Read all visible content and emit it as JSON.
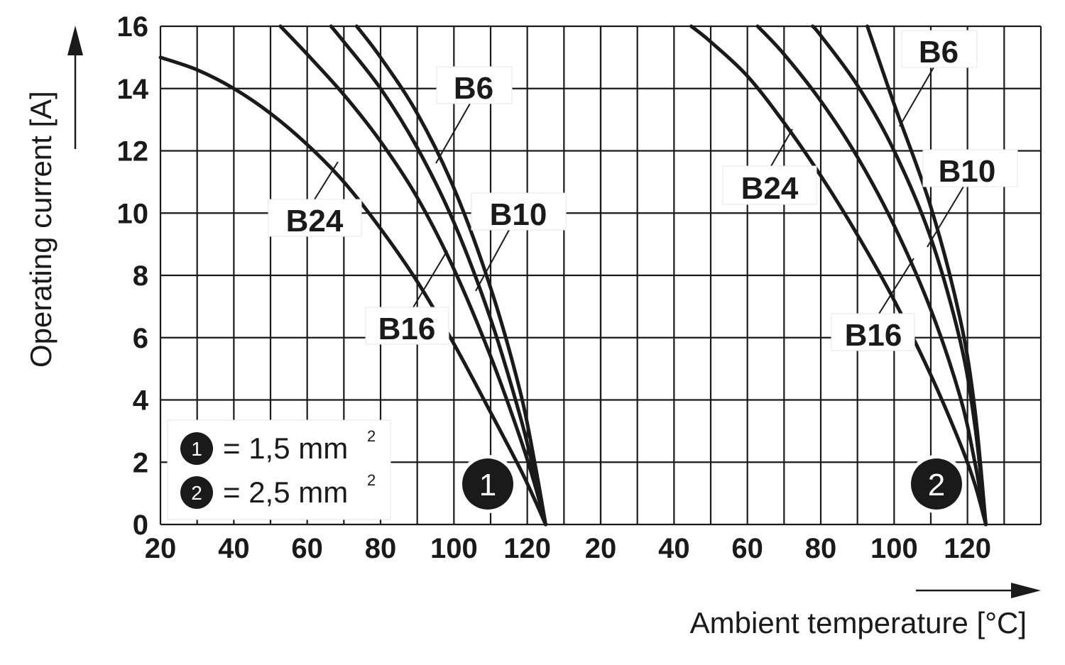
{
  "chart_data": {
    "type": "line",
    "xlabel": "Ambient temperature [°C]",
    "ylabel": "Operating current [A]",
    "ylim": [
      0,
      16
    ],
    "yticks": [
      "0",
      "2",
      "4",
      "6",
      "8",
      "10",
      "12",
      "14",
      "16"
    ],
    "grid": true,
    "legend": {
      "placement": "bottom-left",
      "items": [
        {
          "marker": "1",
          "text": "= 1,5 mm",
          "sup": "2"
        },
        {
          "marker": "2",
          "text": "= 2,5 mm",
          "sup": "2"
        }
      ]
    },
    "panels": [
      {
        "marker": "1",
        "xlim": [
          20,
          140
        ],
        "xticks": [
          "20",
          "40",
          "60",
          "80",
          "100",
          "120"
        ],
        "series": [
          {
            "name": "B24",
            "x": [
              20,
              30,
              40,
              50,
              60,
              70,
              80,
              90,
              100,
              110,
              118,
              122,
              125
            ],
            "y": [
              15,
              14.6,
              14,
              13.2,
              12.2,
              11,
              9.5,
              7.8,
              5.8,
              3.6,
              1.8,
              0.8,
              0
            ]
          },
          {
            "name": "B16",
            "x": [
              52.7,
              60,
              70,
              80,
              90,
              100,
              110,
              118,
              122,
              125
            ],
            "y": [
              16,
              15.1,
              13.8,
              12.3,
              10.5,
              8.2,
              5.4,
              2.8,
              1.3,
              0
            ]
          },
          {
            "name": "B10",
            "x": [
              66.5,
              70,
              80,
              90,
              100,
              110,
              118,
              122,
              125
            ],
            "y": [
              16,
              15.5,
              14,
              12.1,
              9.7,
              6.6,
              3.5,
              1.6,
              0
            ]
          },
          {
            "name": "B6",
            "x": [
              73.5,
              80,
              90,
              100,
              110,
              118,
              122,
              125
            ],
            "y": [
              16,
              15,
              13.2,
              10.8,
              7.6,
              4.3,
              2,
              0
            ]
          }
        ],
        "labels": [
          {
            "series": "B24",
            "text": "B24"
          },
          {
            "series": "B16",
            "text": "B16"
          },
          {
            "series": "B10",
            "text": "B10"
          },
          {
            "series": "B6",
            "text": "B6"
          }
        ]
      },
      {
        "marker": "2",
        "xlim": [
          20,
          140
        ],
        "xticks": [
          "20",
          "40",
          "60",
          "80",
          "100",
          "120"
        ],
        "series": [
          {
            "name": "B24",
            "x": [
              44.7,
              50,
              60,
              70,
              80,
              90,
              100,
              110,
              118,
              122,
              125
            ],
            "y": [
              16,
              15.5,
              14.4,
              12.9,
              11.2,
              9.3,
              7.2,
              4.8,
              2.6,
              1.3,
              0
            ]
          },
          {
            "name": "B16",
            "x": [
              62.8,
              70,
              80,
              90,
              100,
              110,
              118,
              122,
              125
            ],
            "y": [
              16,
              15.1,
              13.6,
              11.8,
              9.6,
              6.9,
              4.1,
              2,
              0
            ]
          },
          {
            "name": "B10",
            "x": [
              77.8,
              80,
              90,
              100,
              110,
              118,
              122,
              125
            ],
            "y": [
              16,
              15.7,
              14.1,
              12,
              9.2,
              5.9,
              3.2,
              0
            ]
          },
          {
            "name": "B6",
            "x": [
              92.7,
              100,
              110,
              118,
              122,
              125
            ],
            "y": [
              16,
              13.5,
              10.2,
              6.6,
              3.7,
              0
            ]
          }
        ],
        "labels": [
          {
            "series": "B24",
            "text": "B24"
          },
          {
            "series": "B16",
            "text": "B16"
          },
          {
            "series": "B10",
            "text": "B10"
          },
          {
            "series": "B6",
            "text": "B6"
          }
        ]
      }
    ]
  }
}
